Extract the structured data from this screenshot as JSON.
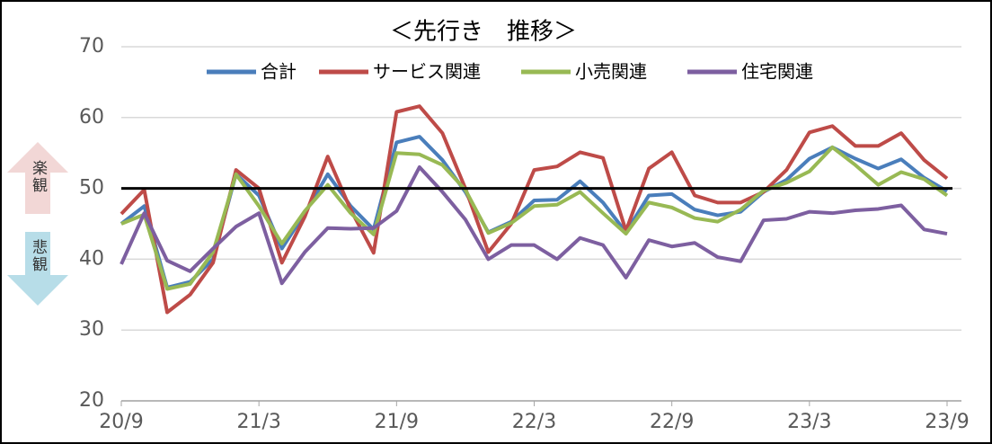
{
  "chart_data": {
    "type": "line",
    "title": "＜先行き　推移＞",
    "categories": [
      "20/9",
      null,
      null,
      null,
      null,
      null,
      "21/3",
      null,
      null,
      null,
      null,
      null,
      "21/9",
      null,
      null,
      null,
      null,
      null,
      "22/3",
      null,
      null,
      null,
      null,
      null,
      "22/9",
      null,
      null,
      null,
      null,
      null,
      "23/3",
      null,
      null,
      null,
      null,
      null,
      "23/9"
    ],
    "series": [
      {
        "name": "合計",
        "color": "#4a7ebb",
        "values": [
          45,
          47.5,
          36,
          36.8,
          40,
          52,
          49,
          41.5,
          46.5,
          52,
          47.5,
          44.2,
          56.5,
          57.3,
          54,
          49.5,
          43.8,
          45.3,
          48.3,
          48.4,
          51,
          48,
          43.8,
          49,
          49.2,
          47,
          46.2,
          46.7,
          49.5,
          51.2,
          54.2,
          55.8,
          54.2,
          52.8,
          54.1,
          51.5,
          49.6
        ]
      },
      {
        "name": "サービス関連",
        "color": "#be4b48",
        "values": [
          46.4,
          49.8,
          32.5,
          35,
          39.5,
          52.6,
          50,
          39.5,
          46,
          54.5,
          47,
          40.9,
          60.8,
          61.6,
          57.8,
          50,
          41,
          45,
          52.6,
          53.1,
          55.1,
          54.3,
          44,
          52.8,
          55.1,
          49,
          48,
          48,
          49.5,
          52.6,
          57.9,
          58.8,
          56,
          56,
          57.8,
          54,
          51.4
        ]
      },
      {
        "name": "小売関連",
        "color": "#98b954",
        "values": [
          45,
          46.3,
          35.8,
          36.5,
          41,
          52,
          47.5,
          42.2,
          46.8,
          50.5,
          46.5,
          43.5,
          55,
          54.8,
          53.3,
          49.8,
          43.7,
          45.1,
          47.5,
          47.7,
          49.5,
          46.5,
          43.6,
          48,
          47.3,
          45.8,
          45.3,
          47,
          49.7,
          50.8,
          52.4,
          55.8,
          53.3,
          50.5,
          52.3,
          51.3,
          49
        ]
      },
      {
        "name": "住宅関連",
        "color": "#7d5fa0",
        "values": [
          39.3,
          46.5,
          39.8,
          38.3,
          41.5,
          44.6,
          46.5,
          36.6,
          41,
          44.4,
          44.3,
          44.4,
          46.8,
          53,
          49.5,
          45.6,
          40,
          42,
          42,
          40,
          43,
          42,
          37.4,
          42.7,
          41.8,
          42.3,
          40.3,
          39.7,
          45.5,
          45.7,
          46.7,
          46.5,
          46.9,
          47.1,
          47.6,
          44.2,
          43.6
        ]
      }
    ],
    "ylim": [
      20,
      70
    ],
    "yticks": [
      20,
      30,
      40,
      50,
      60,
      70
    ],
    "grid": true,
    "reference_line": 50,
    "annotations": [
      "楽観",
      "悲観"
    ]
  }
}
